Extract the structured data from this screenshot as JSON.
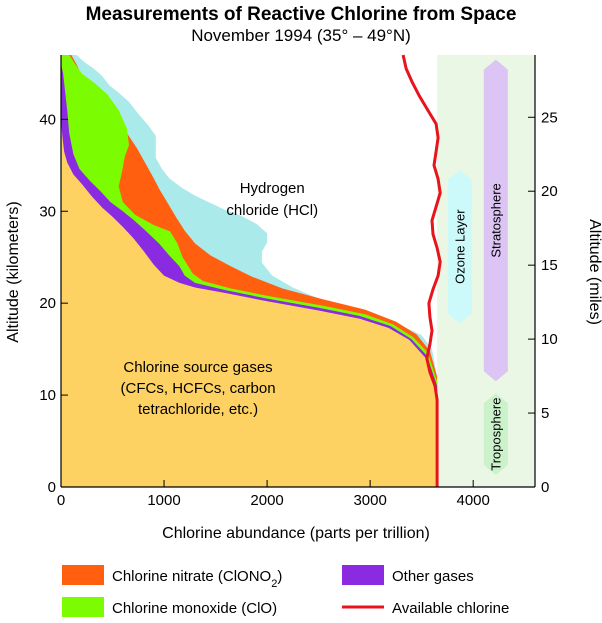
{
  "chart_data": {
    "type": "area",
    "title": "Measurements of Reactive Chlorine from Space",
    "subtitle": "November 1994 (35° – 49°N)",
    "xlabel": "Chlorine abundance (parts per trillion)",
    "ylabel": "Altitude (kilometers)",
    "ylabel_right": "Altitude (miles)",
    "xlim": [
      0,
      4600
    ],
    "ylim": [
      0,
      47
    ],
    "xticks": [
      0,
      1000,
      2000,
      3000,
      4000
    ],
    "yticks": [
      0,
      10,
      20,
      30,
      40
    ],
    "yticks_right": [
      0,
      5,
      10,
      15,
      20,
      25
    ],
    "km_per_mile": 1.609,
    "grid": false,
    "series": [
      {
        "name": "Chlorine source gases (CFCs, HCFCs, carbon tetrachloride, etc.)",
        "label_lines": [
          "Chlorine source gases",
          "(CFCs, HCFCs, carbon",
          "tetrachloride, etc.)"
        ],
        "color": "#fdd263",
        "boundary": [
          [
            3660,
            0
          ],
          [
            3650,
            10
          ],
          [
            3540,
            14
          ],
          [
            3380,
            16
          ],
          [
            3180,
            17.3
          ],
          [
            2900,
            18.3
          ],
          [
            2500,
            19.2
          ],
          [
            2000,
            20.2
          ],
          [
            1600,
            21.1
          ],
          [
            1300,
            21.7
          ],
          [
            1150,
            22.2
          ],
          [
            1000,
            23
          ],
          [
            900,
            24.2
          ],
          [
            800,
            25.7
          ],
          [
            700,
            27.1
          ],
          [
            600,
            28.3
          ],
          [
            500,
            29.4
          ],
          [
            400,
            30.4
          ],
          [
            300,
            31.6
          ],
          [
            200,
            33
          ],
          [
            120,
            34
          ],
          [
            60,
            35.3
          ],
          [
            30,
            36.5
          ],
          [
            15,
            38
          ],
          [
            0,
            40
          ]
        ]
      },
      {
        "name": "Other gases",
        "color": "#8a2be2",
        "boundary": [
          [
            3660,
            0
          ],
          [
            3650,
            11
          ],
          [
            3550,
            14.3
          ],
          [
            3400,
            16.1
          ],
          [
            3200,
            17.5
          ],
          [
            2900,
            18.6
          ],
          [
            2500,
            19.5
          ],
          [
            2000,
            20.5
          ],
          [
            1600,
            21.4
          ],
          [
            1300,
            22.2
          ],
          [
            1200,
            23
          ],
          [
            1150,
            24
          ],
          [
            1050,
            25.2
          ],
          [
            950,
            26.5
          ],
          [
            820,
            27.9
          ],
          [
            700,
            29.1
          ],
          [
            600,
            30
          ],
          [
            480,
            31
          ],
          [
            380,
            32.2
          ],
          [
            280,
            33.3
          ],
          [
            180,
            34.6
          ],
          [
            120,
            36.2
          ],
          [
            80,
            38.5
          ],
          [
            60,
            41
          ],
          [
            40,
            43
          ],
          [
            20,
            45
          ],
          [
            0,
            46
          ]
        ]
      },
      {
        "name": "Chlorine monoxide (ClO)",
        "color": "#7cfc00",
        "boundary": [
          [
            3660,
            0
          ],
          [
            3650,
            11.5
          ],
          [
            3560,
            14.6
          ],
          [
            3420,
            16.3
          ],
          [
            3220,
            17.7
          ],
          [
            2950,
            18.8
          ],
          [
            2550,
            19.7
          ],
          [
            2050,
            20.7
          ],
          [
            1650,
            21.6
          ],
          [
            1380,
            22.4
          ],
          [
            1280,
            23.2
          ],
          [
            1180,
            25
          ],
          [
            1130,
            26.5
          ],
          [
            1060,
            27.8
          ],
          [
            900,
            28.5
          ],
          [
            720,
            29.6
          ],
          [
            600,
            31
          ],
          [
            560,
            32.7
          ],
          [
            590,
            34.2
          ],
          [
            620,
            36
          ],
          [
            660,
            37.2
          ],
          [
            640,
            39
          ],
          [
            560,
            41
          ],
          [
            450,
            42.7
          ],
          [
            320,
            44
          ],
          [
            200,
            45
          ],
          [
            140,
            46
          ],
          [
            80,
            47
          ],
          [
            0,
            47
          ]
        ]
      },
      {
        "name": "Chlorine nitrate (ClONO2)",
        "legend_main": "Chlorine nitrate (ClONO",
        "legend_sub": "2",
        "legend_tail": ")",
        "color": "#ff5f0f",
        "boundary": [
          [
            3660,
            0
          ],
          [
            3650,
            12
          ],
          [
            3580,
            14.8
          ],
          [
            3450,
            16.6
          ],
          [
            3250,
            18
          ],
          [
            2950,
            19.3
          ],
          [
            2550,
            20.4
          ],
          [
            2150,
            21.6
          ],
          [
            1850,
            22.9
          ],
          [
            1650,
            24
          ],
          [
            1450,
            25.2
          ],
          [
            1300,
            26.5
          ],
          [
            1200,
            27.9
          ],
          [
            1120,
            29.3
          ],
          [
            1040,
            30.8
          ],
          [
            960,
            32.3
          ],
          [
            900,
            33.6
          ],
          [
            820,
            35.2
          ],
          [
            740,
            36.8
          ],
          [
            640,
            38.5
          ],
          [
            520,
            40.2
          ],
          [
            400,
            41.8
          ],
          [
            300,
            43.3
          ],
          [
            200,
            44.8
          ],
          [
            150,
            46
          ],
          [
            100,
            47
          ],
          [
            0,
            47
          ]
        ]
      },
      {
        "name": "Hydrogen chloride (HCl)",
        "label_lines": [
          "Hydrogen",
          "chloride (HCl)"
        ],
        "color": "#aaeaea",
        "boundary": [
          [
            3660,
            0
          ],
          [
            3650,
            12
          ],
          [
            3600,
            15
          ],
          [
            3500,
            16.5
          ],
          [
            3350,
            17.3
          ],
          [
            3100,
            18.4
          ],
          [
            2800,
            19.5
          ],
          [
            2500,
            20.5
          ],
          [
            2250,
            21.7
          ],
          [
            2050,
            23
          ],
          [
            1950,
            24.4
          ],
          [
            1950,
            25.6
          ],
          [
            2000,
            26.6
          ],
          [
            2000,
            27.6
          ],
          [
            1900,
            28.6
          ],
          [
            1750,
            29.5
          ],
          [
            1600,
            30.1
          ],
          [
            1450,
            30.9
          ],
          [
            1300,
            31.7
          ],
          [
            1180,
            32.5
          ],
          [
            1050,
            33.6
          ],
          [
            980,
            34.6
          ],
          [
            920,
            35.8
          ],
          [
            920,
            37.1
          ],
          [
            920,
            38.2
          ],
          [
            850,
            39.3
          ],
          [
            750,
            40.6
          ],
          [
            660,
            41.9
          ],
          [
            560,
            42.9
          ],
          [
            470,
            43.7
          ],
          [
            400,
            44.7
          ],
          [
            320,
            45.5
          ],
          [
            230,
            46.2
          ],
          [
            150,
            47
          ],
          [
            0,
            47
          ]
        ]
      },
      {
        "name": "Available chlorine",
        "color": "#e8141c",
        "line": [
          [
            3650,
            0
          ],
          [
            3650,
            9.5
          ],
          [
            3630,
            11
          ],
          [
            3580,
            12.5
          ],
          [
            3550,
            14
          ],
          [
            3580,
            15.5
          ],
          [
            3600,
            17
          ],
          [
            3580,
            18.5
          ],
          [
            3570,
            20
          ],
          [
            3610,
            21.5
          ],
          [
            3660,
            23
          ],
          [
            3680,
            24.5
          ],
          [
            3650,
            26
          ],
          [
            3610,
            27.5
          ],
          [
            3600,
            29
          ],
          [
            3640,
            30.5
          ],
          [
            3680,
            32
          ],
          [
            3660,
            33.5
          ],
          [
            3620,
            35
          ],
          [
            3640,
            36.5
          ],
          [
            3660,
            38
          ],
          [
            3640,
            39.5
          ],
          [
            3560,
            41
          ],
          [
            3480,
            42.5
          ],
          [
            3410,
            44
          ],
          [
            3350,
            45.5
          ],
          [
            3320,
            47
          ]
        ]
      }
    ],
    "hcl_label_pos": [
      2050,
      32
    ],
    "source_label_pos": [
      1330,
      12.5
    ],
    "bands": [
      {
        "label": "Ozone Layer",
        "x": 3870,
        "range": [
          17.8,
          34.5
        ],
        "color": "#ccfafb"
      },
      {
        "label": "Stratosphere",
        "x": 4220,
        "range": [
          11.5,
          46.5
        ],
        "color": "#dcc4f4"
      },
      {
        "label": "Troposphere",
        "x": 4220,
        "range": [
          1.3,
          10.2
        ],
        "color": "#ccf2cc"
      }
    ],
    "shade_from_x": 3650,
    "shade_color": "#eaf7e4",
    "legend_order": [
      "Chlorine nitrate (ClONO2)",
      "Other gases",
      "Chlorine monoxide (ClO)",
      "Available chlorine"
    ],
    "legend_placement": "bottom"
  }
}
